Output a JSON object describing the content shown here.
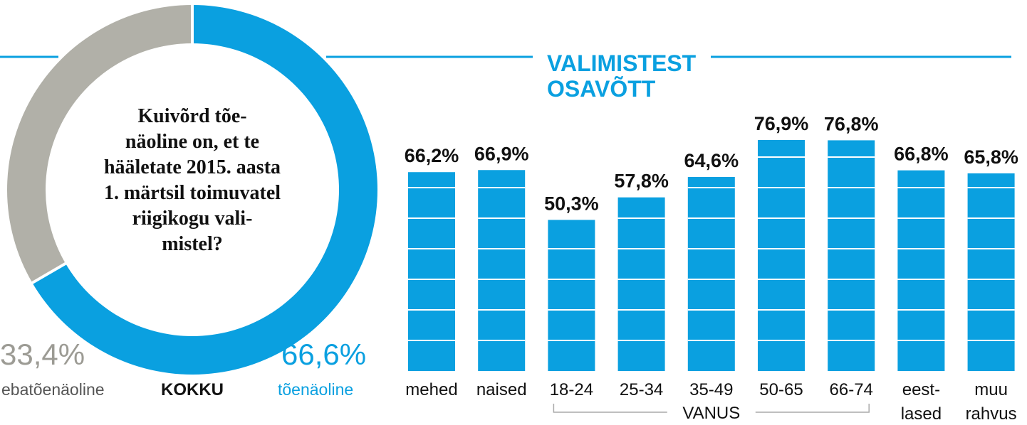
{
  "colors": {
    "accent": "#0aa0e0",
    "gray": "#b1b0a8",
    "text": "#111111",
    "line": "#aaaaaa"
  },
  "donut": {
    "question_lines": [
      "Kuivõrd tõe-",
      "näoline on, et te",
      "hääletate 2015. aasta",
      "1. märtsil toimuvatel",
      "riigikogu vali-",
      "mistel?"
    ],
    "total_label": "KOKKU",
    "slices": [
      {
        "name": "tõenäoline",
        "value": 66.6,
        "value_label": "66,6%",
        "color": "#0aa0e0"
      },
      {
        "name": "ebatõenäoline",
        "value": 33.4,
        "value_label": "33,4%",
        "color": "#b1b0a8"
      }
    ]
  },
  "chart_data": {
    "type": "bar",
    "title_lines": [
      "VALIMISTEST",
      "OSAVÕTT"
    ],
    "categories": [
      [
        "mehed"
      ],
      [
        "naised"
      ],
      [
        "18-24"
      ],
      [
        "25-34"
      ],
      [
        "35-49"
      ],
      [
        "50-65"
      ],
      [
        "66-74"
      ],
      [
        "eest-",
        "lased"
      ],
      [
        "muu",
        "rahvus"
      ]
    ],
    "values": [
      66.2,
      66.9,
      50.3,
      57.8,
      64.6,
      76.9,
      76.8,
      66.8,
      65.8
    ],
    "value_labels": [
      "66,2%",
      "66,9%",
      "50,3%",
      "57,8%",
      "64,6%",
      "76,9%",
      "76,8%",
      "66,8%",
      "65,8%"
    ],
    "group_label": "VANUS",
    "group_start": 2,
    "group_end": 6,
    "ylim": [
      0,
      80
    ]
  }
}
